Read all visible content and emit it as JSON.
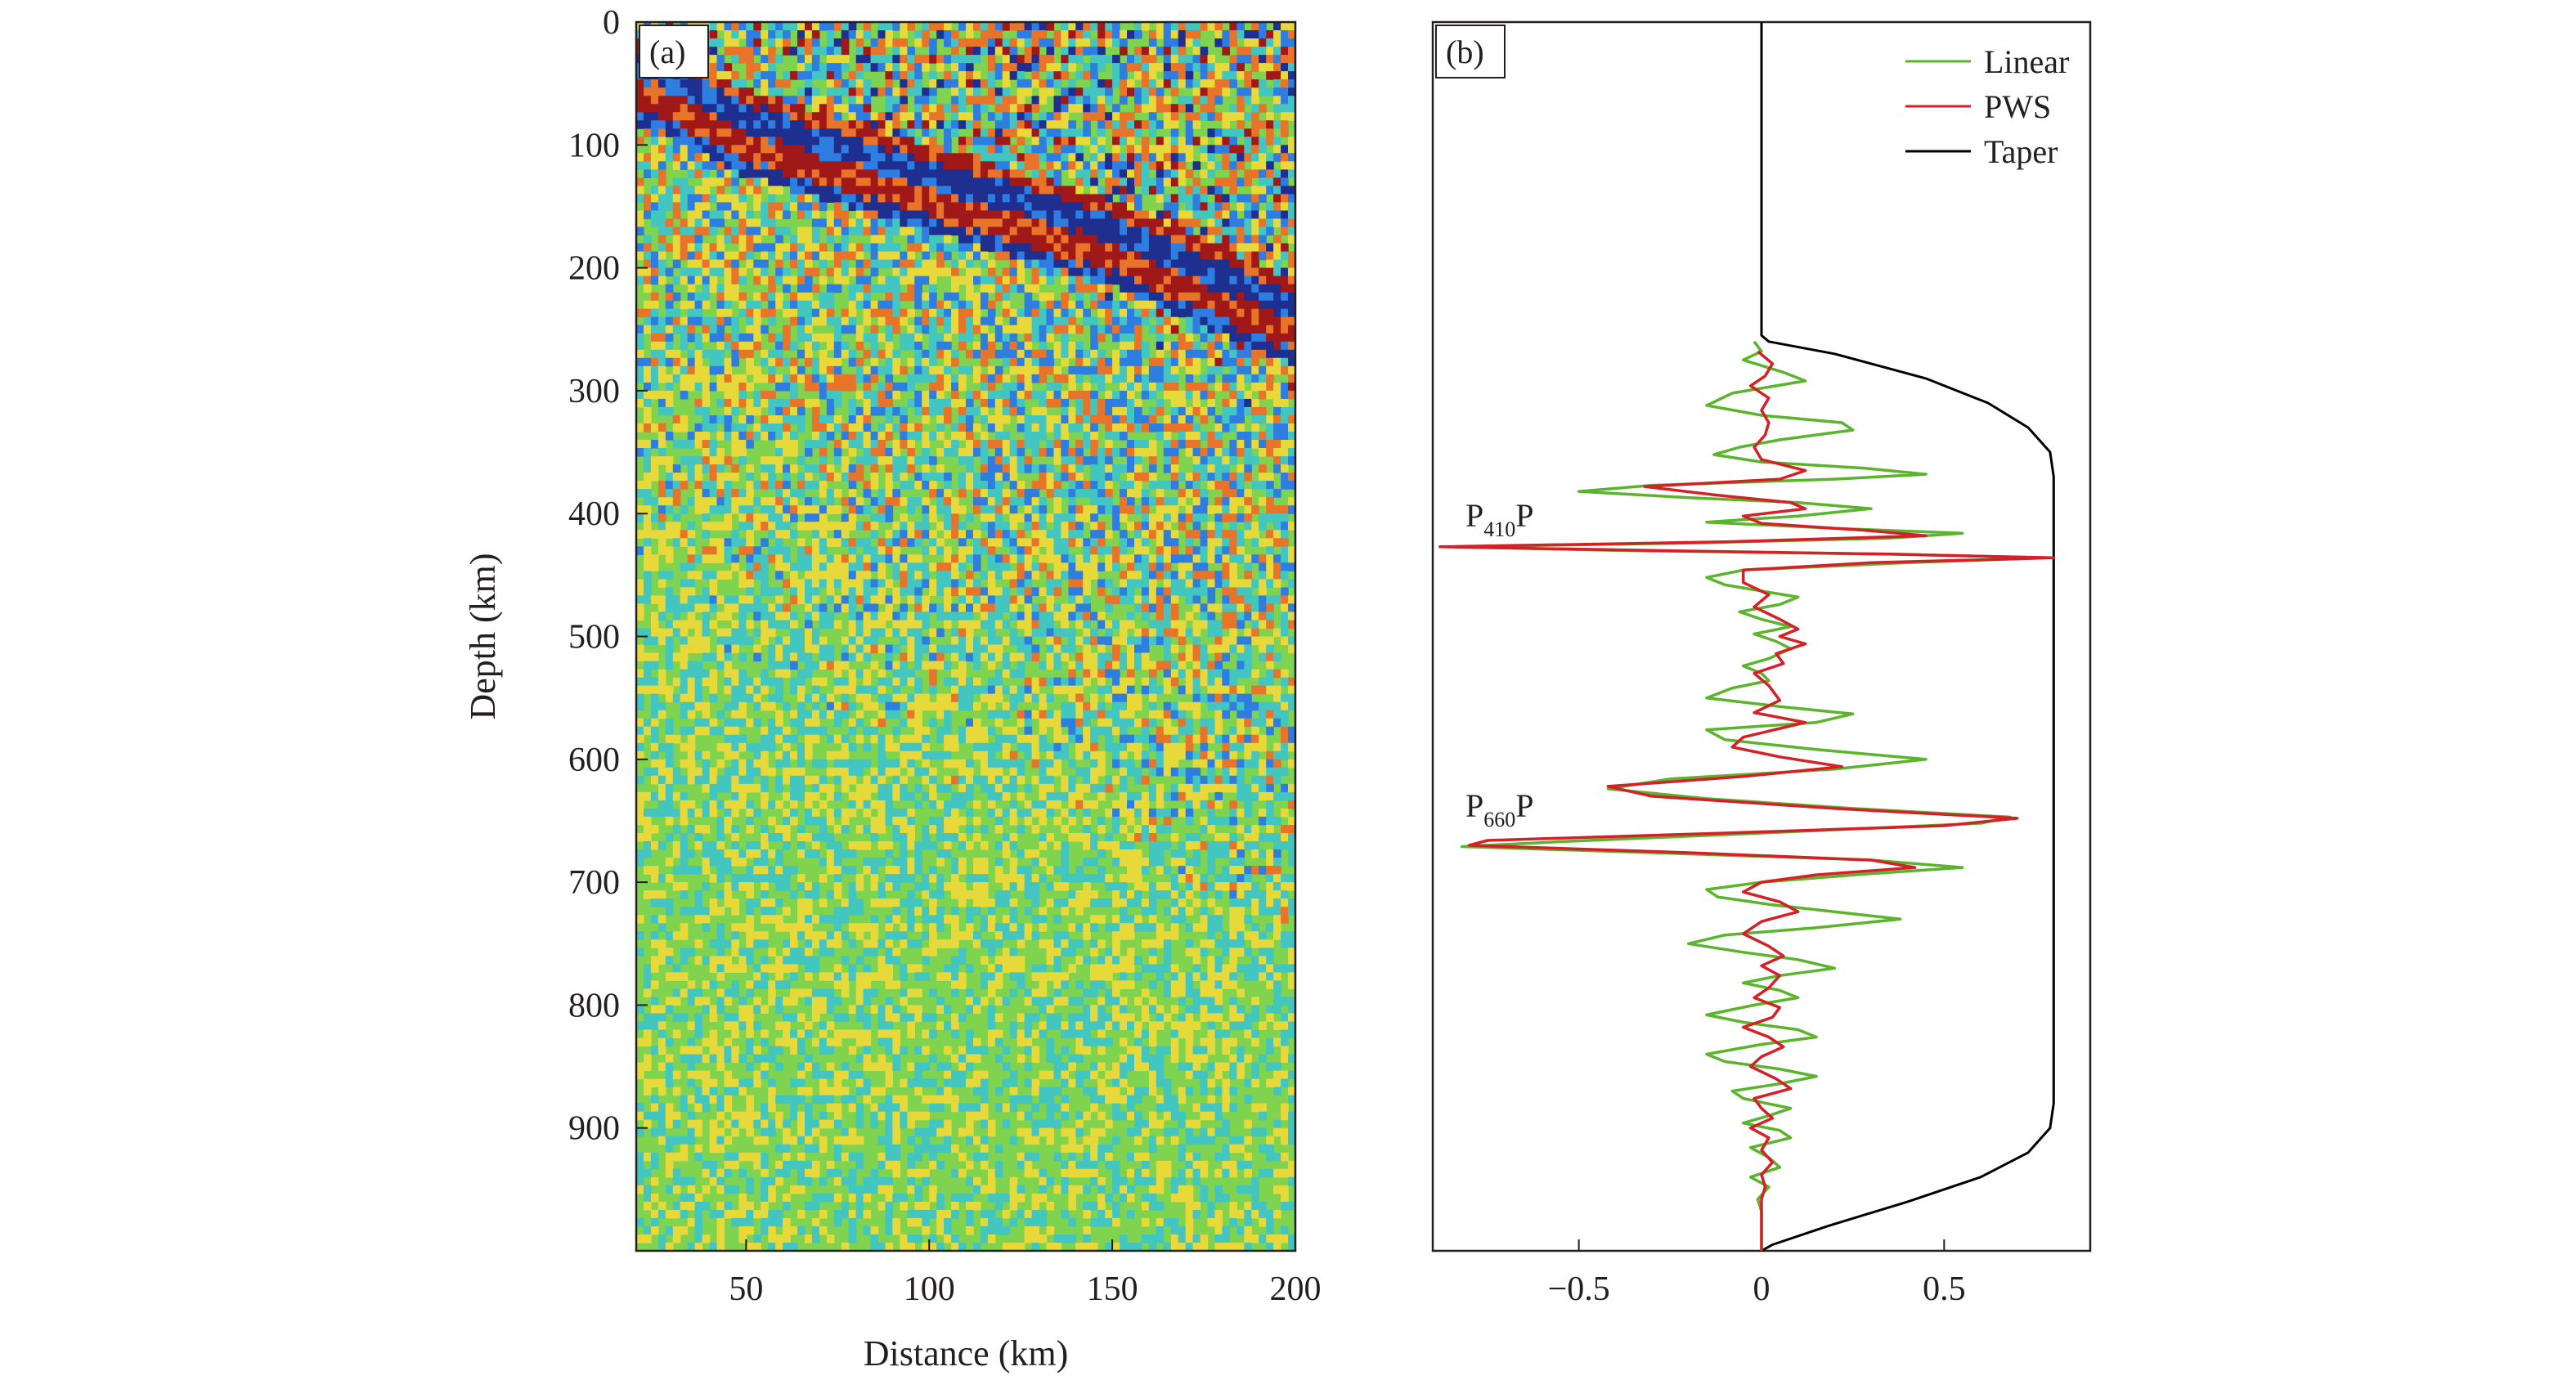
{
  "chart_data": [
    {
      "panel": "(a)",
      "type": "heatmap",
      "xlabel": "Distance (km)",
      "ylabel": "Depth (km)",
      "xlim": [
        20,
        200
      ],
      "ylim": [
        1000,
        0
      ],
      "x_ticks": [
        50,
        100,
        150,
        200
      ],
      "y_ticks": [
        0,
        100,
        200,
        300,
        400,
        500,
        600,
        700,
        800,
        900
      ],
      "colormap": [
        "#1f2f8f",
        "#2e7de0",
        "#43c6c0",
        "#7fd34e",
        "#e8d93a",
        "#e8742a",
        "#a01818"
      ],
      "features": {
        "strong_arrival_depth_km": [
          [
            25,
            50
          ],
          [
            50,
            90
          ],
          [
            100,
            135
          ],
          [
            150,
            180
          ],
          [
            200,
            245
          ]
        ],
        "arrival_band_width_km": 35,
        "noise_top_depth_km": 60
      }
    },
    {
      "panel": "(b)",
      "type": "line",
      "xlim": [
        -0.9,
        0.9
      ],
      "ylim": [
        1000,
        0
      ],
      "x_ticks": [
        -0.5,
        0,
        0.5
      ],
      "x_tick_labels": [
        "−0.5",
        "0",
        "0.5"
      ],
      "legend": {
        "position": "top-right",
        "entries": [
          "Linear",
          "PWS",
          "Taper"
        ]
      },
      "series": [
        {
          "name": "Linear",
          "color": "#5ab42c",
          "points": [
            [
              -0.02,
              260
            ],
            [
              0.0,
              268
            ],
            [
              -0.05,
              275
            ],
            [
              0.06,
              285
            ],
            [
              0.12,
              292
            ],
            [
              -0.08,
              302
            ],
            [
              -0.15,
              312
            ],
            [
              0.0,
              320
            ],
            [
              0.22,
              326
            ],
            [
              0.25,
              332
            ],
            [
              0.05,
              340
            ],
            [
              -0.06,
              346
            ],
            [
              -0.13,
              352
            ],
            [
              0.0,
              358
            ],
            [
              0.28,
              363
            ],
            [
              0.45,
              368
            ],
            [
              0.2,
              372
            ],
            [
              -0.3,
              377
            ],
            [
              -0.5,
              382
            ],
            [
              -0.2,
              387
            ],
            [
              0.1,
              391
            ],
            [
              0.3,
              396
            ],
            [
              0.1,
              402
            ],
            [
              -0.15,
              407
            ],
            [
              0.2,
              412
            ],
            [
              0.55,
              416
            ],
            [
              0.35,
              420
            ],
            [
              -0.2,
              424
            ],
            [
              -0.85,
              427
            ],
            [
              -0.4,
              430
            ],
            [
              0.35,
              433
            ],
            [
              0.78,
              436
            ],
            [
              0.4,
              440
            ],
            [
              -0.05,
              446
            ],
            [
              -0.15,
              452
            ],
            [
              -0.1,
              458
            ],
            [
              0.0,
              463
            ],
            [
              0.1,
              468
            ],
            [
              0.05,
              474
            ],
            [
              -0.06,
              480
            ],
            [
              0.0,
              486
            ],
            [
              0.08,
              492
            ],
            [
              -0.02,
              498
            ],
            [
              0.04,
              504
            ],
            [
              0.08,
              510
            ],
            [
              0.02,
              518
            ],
            [
              -0.05,
              524
            ],
            [
              0.0,
              530
            ],
            [
              0.02,
              536
            ],
            [
              -0.08,
              542
            ],
            [
              -0.15,
              550
            ],
            [
              0.05,
              557
            ],
            [
              0.25,
              563
            ],
            [
              0.15,
              570
            ],
            [
              -0.15,
              576
            ],
            [
              -0.1,
              584
            ],
            [
              0.15,
              592
            ],
            [
              0.45,
              600
            ],
            [
              0.2,
              608
            ],
            [
              -0.25,
              616
            ],
            [
              -0.42,
              624
            ],
            [
              -0.15,
              632
            ],
            [
              0.25,
              640
            ],
            [
              0.68,
              647
            ],
            [
              0.6,
              652
            ],
            [
              0.0,
              660
            ],
            [
              -0.55,
              667
            ],
            [
              -0.82,
              671
            ],
            [
              -0.3,
              676
            ],
            [
              0.3,
              682
            ],
            [
              0.55,
              688
            ],
            [
              0.3,
              693
            ],
            [
              0.0,
              700
            ],
            [
              -0.15,
              706
            ],
            [
              -0.12,
              712
            ],
            [
              0.02,
              718
            ],
            [
              0.2,
              724
            ],
            [
              0.38,
              730
            ],
            [
              0.15,
              737
            ],
            [
              -0.1,
              743
            ],
            [
              -0.2,
              750
            ],
            [
              -0.05,
              757
            ],
            [
              0.1,
              763
            ],
            [
              0.2,
              770
            ],
            [
              0.05,
              776
            ],
            [
              -0.05,
              782
            ],
            [
              0.05,
              788
            ],
            [
              0.1,
              794
            ],
            [
              -0.02,
              800
            ],
            [
              -0.15,
              808
            ],
            [
              -0.05,
              814
            ],
            [
              0.1,
              820
            ],
            [
              0.15,
              826
            ],
            [
              0.0,
              832
            ],
            [
              -0.15,
              840
            ],
            [
              -0.1,
              846
            ],
            [
              0.05,
              852
            ],
            [
              0.15,
              858
            ],
            [
              0.05,
              864
            ],
            [
              -0.08,
              870
            ],
            [
              -0.05,
              876
            ],
            [
              0.08,
              884
            ],
            [
              0.02,
              890
            ],
            [
              -0.05,
              896
            ],
            [
              0.05,
              902
            ],
            [
              0.08,
              908
            ],
            [
              -0.03,
              916
            ],
            [
              0.02,
              924
            ],
            [
              0.05,
              932
            ],
            [
              -0.03,
              940
            ],
            [
              0.02,
              948
            ],
            [
              -0.01,
              958
            ],
            [
              0.0,
              968
            ],
            [
              0.0,
              1000
            ]
          ]
        },
        {
          "name": "PWS",
          "color": "#d42026",
          "points": [
            [
              -0.01,
              268
            ],
            [
              0.03,
              278
            ],
            [
              0.01,
              288
            ],
            [
              -0.03,
              296
            ],
            [
              0.02,
              306
            ],
            [
              0.0,
              316
            ],
            [
              0.02,
              326
            ],
            [
              0.01,
              336
            ],
            [
              -0.02,
              346
            ],
            [
              0.0,
              356
            ],
            [
              0.12,
              365
            ],
            [
              0.05,
              372
            ],
            [
              -0.32,
              378
            ],
            [
              -0.12,
              385
            ],
            [
              0.08,
              391
            ],
            [
              0.12,
              396
            ],
            [
              -0.05,
              402
            ],
            [
              0.0,
              408
            ],
            [
              0.3,
              414
            ],
            [
              0.45,
              418
            ],
            [
              -0.1,
              423
            ],
            [
              -0.88,
              427
            ],
            [
              -0.3,
              430
            ],
            [
              0.35,
              433
            ],
            [
              0.8,
              436
            ],
            [
              0.3,
              440
            ],
            [
              -0.05,
              446
            ],
            [
              -0.05,
              456
            ],
            [
              0.02,
              466
            ],
            [
              -0.02,
              476
            ],
            [
              0.05,
              486
            ],
            [
              0.1,
              494
            ],
            [
              0.05,
              500
            ],
            [
              0.12,
              506
            ],
            [
              0.04,
              514
            ],
            [
              0.06,
              522
            ],
            [
              -0.02,
              530
            ],
            [
              0.02,
              540
            ],
            [
              0.05,
              552
            ],
            [
              -0.02,
              562
            ],
            [
              0.12,
              570
            ],
            [
              -0.05,
              582
            ],
            [
              -0.08,
              590
            ],
            [
              0.05,
              598
            ],
            [
              0.22,
              606
            ],
            [
              -0.05,
              614
            ],
            [
              -0.42,
              622
            ],
            [
              -0.3,
              630
            ],
            [
              0.2,
              640
            ],
            [
              0.7,
              648
            ],
            [
              0.5,
              654
            ],
            [
              -0.1,
              660
            ],
            [
              -0.75,
              666
            ],
            [
              -0.8,
              670
            ],
            [
              -0.2,
              676
            ],
            [
              0.3,
              682
            ],
            [
              0.42,
              688
            ],
            [
              0.15,
              694
            ],
            [
              0.0,
              700
            ],
            [
              -0.05,
              708
            ],
            [
              0.05,
              716
            ],
            [
              0.1,
              724
            ],
            [
              0.0,
              732
            ],
            [
              -0.05,
              742
            ],
            [
              0.02,
              752
            ],
            [
              0.06,
              760
            ],
            [
              0.0,
              768
            ],
            [
              0.05,
              776
            ],
            [
              0.02,
              786
            ],
            [
              -0.02,
              794
            ],
            [
              0.05,
              802
            ],
            [
              0.03,
              810
            ],
            [
              -0.05,
              818
            ],
            [
              0.02,
              826
            ],
            [
              0.06,
              834
            ],
            [
              0.0,
              842
            ],
            [
              -0.03,
              850
            ],
            [
              0.04,
              860
            ],
            [
              0.08,
              868
            ],
            [
              -0.02,
              876
            ],
            [
              0.0,
              884
            ],
            [
              0.03,
              892
            ],
            [
              -0.03,
              900
            ],
            [
              0.02,
              908
            ],
            [
              0.0,
              918
            ],
            [
              0.03,
              928
            ],
            [
              0.0,
              938
            ],
            [
              0.01,
              948
            ],
            [
              0.0,
              958
            ],
            [
              0.0,
              1000
            ]
          ]
        },
        {
          "name": "Taper",
          "color": "#000000",
          "points": [
            [
              0,
              0
            ],
            [
              0,
              255
            ],
            [
              0.02,
              260
            ],
            [
              0.2,
              270
            ],
            [
              0.45,
              290
            ],
            [
              0.62,
              310
            ],
            [
              0.73,
              330
            ],
            [
              0.79,
              350
            ],
            [
              0.8,
              370
            ],
            [
              0.8,
              880
            ],
            [
              0.79,
              900
            ],
            [
              0.73,
              920
            ],
            [
              0.6,
              940
            ],
            [
              0.4,
              960
            ],
            [
              0.18,
              980
            ],
            [
              0.03,
              995
            ],
            [
              0,
              1000
            ]
          ]
        }
      ],
      "annotations": [
        {
          "main": "P",
          "sub": "410",
          "tail": "P",
          "depth": 412
        },
        {
          "main": "P",
          "sub": "660",
          "tail": "P",
          "depth": 648
        }
      ]
    }
  ]
}
